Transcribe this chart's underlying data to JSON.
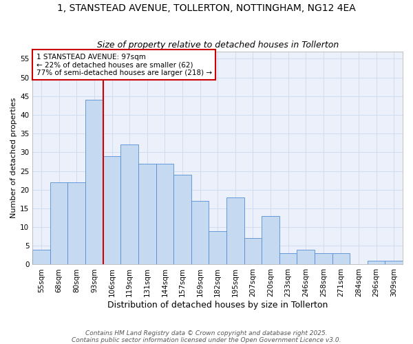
{
  "title_line1": "1, STANSTEAD AVENUE, TOLLERTON, NOTTINGHAM, NG12 4EA",
  "title_line2": "Size of property relative to detached houses in Tollerton",
  "xlabel": "Distribution of detached houses by size in Tollerton",
  "ylabel": "Number of detached properties",
  "categories": [
    "55sqm",
    "68sqm",
    "80sqm",
    "93sqm",
    "106sqm",
    "119sqm",
    "131sqm",
    "144sqm",
    "157sqm",
    "169sqm",
    "182sqm",
    "195sqm",
    "207sqm",
    "220sqm",
    "233sqm",
    "246sqm",
    "258sqm",
    "271sqm",
    "284sqm",
    "296sqm",
    "309sqm"
  ],
  "values": [
    4,
    22,
    22,
    44,
    29,
    32,
    27,
    27,
    24,
    17,
    9,
    18,
    7,
    13,
    3,
    4,
    3,
    3,
    0,
    1,
    1
  ],
  "bar_color": "#C5D9F1",
  "bar_edge_color": "#538DD5",
  "grid_color": "#D0DCF0",
  "background_color": "#EBF0FB",
  "ref_line_x": 3.5,
  "ref_line_color": "#CC0000",
  "annotation_text": "1 STANSTEAD AVENUE: 97sqm\n← 22% of detached houses are smaller (62)\n77% of semi-detached houses are larger (218) →",
  "annotation_box_edgecolor": "#CC0000",
  "footer_text": "Contains HM Land Registry data © Crown copyright and database right 2025.\nContains public sector information licensed under the Open Government Licence v3.0.",
  "ylim": [
    0,
    57
  ],
  "yticks": [
    0,
    5,
    10,
    15,
    20,
    25,
    30,
    35,
    40,
    45,
    50,
    55
  ],
  "title1_fontsize": 10,
  "title2_fontsize": 9,
  "xlabel_fontsize": 9,
  "ylabel_fontsize": 8,
  "tick_fontsize": 7.5,
  "annot_fontsize": 7.5,
  "footer_fontsize": 6.5
}
